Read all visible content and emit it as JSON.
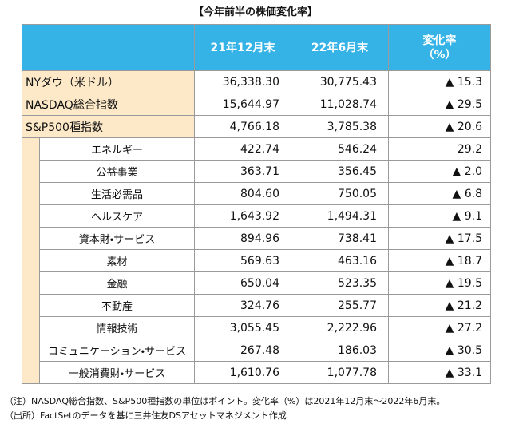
{
  "title": "【今年前半の株価変化率】",
  "table": {
    "header": [
      "21年12月末",
      "22年6月末",
      "変化率",
      "（%）"
    ],
    "rows": [
      [
        "NYダウ（米ドル）",
        "36,338.30",
        "30,775.43",
        "▲ 15.3"
      ],
      [
        "NASDAQ総合指数",
        "15,644.97",
        "11,028.74",
        "▲ 29.5"
      ],
      [
        "S&P500種指数",
        "4,766.18",
        "3,785.38",
        "▲ 20.6"
      ]
    ],
    "sectors": [
      [
        "エネルギー",
        "422.74",
        "546.24",
        "29.2"
      ],
      [
        "公益事業",
        "363.71",
        "356.45",
        "▲ 2.0"
      ],
      [
        "生活必需品",
        "804.60",
        "750.05",
        "▲ 6.8"
      ],
      [
        "ヘルスケア",
        "1,643.92",
        "1,494.31",
        "▲ 9.1"
      ],
      [
        "資本財・サービス",
        "894.96",
        "738.41",
        "▲ 17.5"
      ],
      [
        "素材",
        "569.63",
        "463.16",
        "▲ 18.7"
      ],
      [
        "金融",
        "650.04",
        "523.35",
        "▲ 19.5"
      ],
      [
        "不動産",
        "324.76",
        "255.77",
        "▲ 21.2"
      ],
      [
        "情報技術",
        "3,055.45",
        "2,222.96",
        "▲ 27.2"
      ],
      [
        "コミュニケーション・サービス",
        "267.48",
        "186.03",
        "▲ 30.5"
      ],
      [
        "一般消費財・サービス",
        "1,610.76",
        "1,077.78",
        "▲ 33.1"
      ]
    ]
  },
  "notes": [
    "（注）NASDAQ総合指数、S&P500種指数の単位はポイント。変化率（%）は2021年12月末～2022年6月末。",
    "（出所）FactSetのデータを基に三井住友DSアセットマネジメント作成"
  ]
}
